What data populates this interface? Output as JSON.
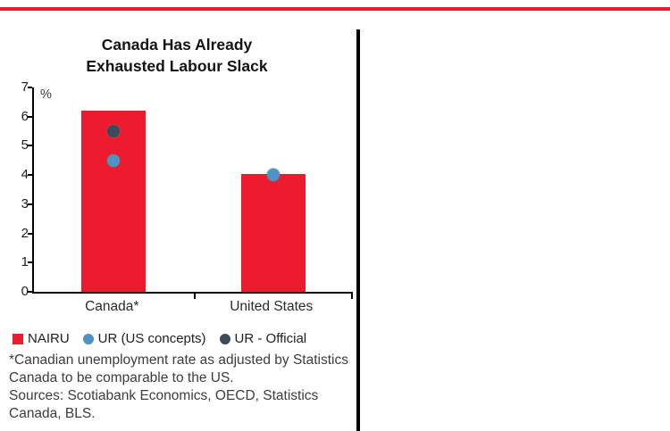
{
  "page": {
    "footnote": "*Canadian unemployment rate as adjusted by Statistics Canada to be comparable to the US.",
    "sources": "Sources: Scotiabank Economics, OECD, Statistics Canada, BLS."
  },
  "colors": {
    "accent_red": "#ec1b2d",
    "point_blue": "#4e92c6",
    "point_dark": "#3d4a5c",
    "axis_black": "#000000"
  },
  "chart_data": {
    "type": "bar",
    "title": "Canada Has Already Exhausted Labour Slack",
    "title_lines": [
      "Canada Has Already",
      "Exhausted Labour Slack"
    ],
    "ylabel": "%",
    "ylim": [
      0,
      7
    ],
    "yticks": [
      0,
      1,
      2,
      3,
      4,
      5,
      6,
      7
    ],
    "categories": [
      "Canada*",
      "United States"
    ],
    "series": [
      {
        "name": "NAIRU",
        "marker": "bar",
        "color": "#ec1b2d",
        "values": [
          6.2,
          4.05
        ]
      },
      {
        "name": "UR (US concepts)",
        "marker": "point",
        "color": "#4e92c6",
        "values": [
          4.5,
          4.0
        ]
      },
      {
        "name": "UR - Official",
        "marker": "point",
        "color": "#3d4a5c",
        "values": [
          5.5,
          null
        ]
      }
    ],
    "grid": false,
    "legend_position": "bottom"
  }
}
